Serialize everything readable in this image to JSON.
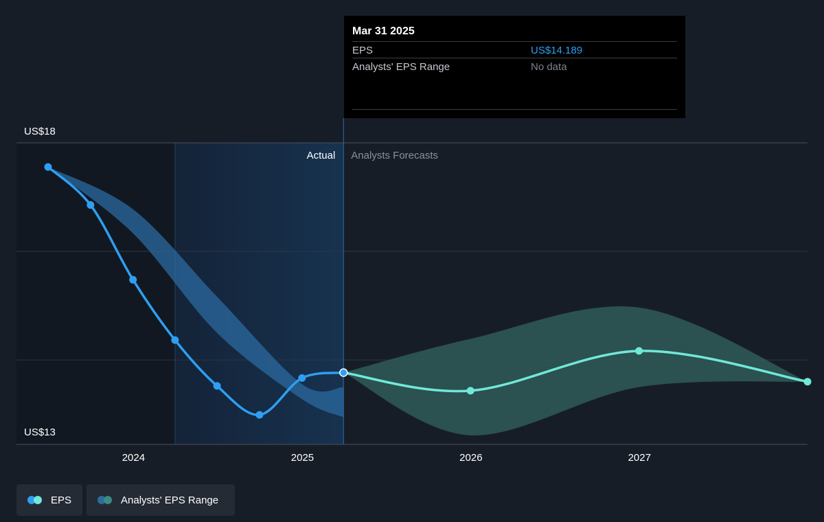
{
  "tooltip": {
    "date": "Mar 31 2025",
    "rows": [
      {
        "label": "EPS",
        "value": "US$14.189",
        "value_color": "#2e9ff2"
      },
      {
        "label": "Analysts' EPS Range",
        "value": "No data",
        "value_color": "#7d838c"
      }
    ]
  },
  "legend": [
    {
      "label": "EPS",
      "colors": [
        "#2e9ff2",
        "#71e8d8"
      ]
    },
    {
      "label": "Analysts' EPS Range",
      "colors": [
        "#2d6d9e",
        "#3d8a84"
      ]
    }
  ],
  "colors": {
    "background": "#171d27",
    "actual_line": "#2e9ff2",
    "forecast_line": "#71e8d8",
    "actual_band": "#2b6aa0",
    "forecast_band": "#2f5b59"
  },
  "chart_data": {
    "type": "line",
    "y_labels": {
      "top": "US$18",
      "bottom": "US$13"
    },
    "ylim": [
      13,
      18
    ],
    "xlim": [
      "2023-06-30",
      "2027-12-31"
    ],
    "x_ticks": [
      {
        "date": "2024-01-01",
        "label": "2024"
      },
      {
        "date": "2025-01-01",
        "label": "2025"
      },
      {
        "date": "2026-01-01",
        "label": "2026"
      },
      {
        "date": "2027-01-01",
        "label": "2027"
      }
    ],
    "gridlines": [
      18,
      16.2,
      14.4
    ],
    "section_labels": {
      "actual": "Actual",
      "forecast": "Analysts Forecasts"
    },
    "past_shade_start": "2024-03-31",
    "divider_date": "2025-03-31",
    "series": [
      {
        "name": "EPS",
        "kind": "actual",
        "points": [
          {
            "x": "2023-06-30",
            "y": 17.6
          },
          {
            "x": "2023-09-30",
            "y": 16.97
          },
          {
            "x": "2023-12-31",
            "y": 15.73
          },
          {
            "x": "2024-03-31",
            "y": 14.73
          },
          {
            "x": "2024-06-30",
            "y": 13.97
          },
          {
            "x": "2024-09-30",
            "y": 13.49
          },
          {
            "x": "2024-12-31",
            "y": 14.1
          },
          {
            "x": "2025-03-31",
            "y": 14.19
          }
        ]
      },
      {
        "name": "EPS",
        "kind": "forecast",
        "points": [
          {
            "x": "2025-03-31",
            "y": 14.19
          },
          {
            "x": "2025-12-31",
            "y": 13.89
          },
          {
            "x": "2026-12-31",
            "y": 14.55
          },
          {
            "x": "2027-12-31",
            "y": 14.04
          }
        ]
      },
      {
        "name": "Analysts' EPS Range",
        "kind": "actual_range",
        "upper": [
          {
            "x": "2023-06-30",
            "y": 17.6
          },
          {
            "x": "2023-12-31",
            "y": 16.9
          },
          {
            "x": "2024-06-30",
            "y": 15.45
          },
          {
            "x": "2024-12-31",
            "y": 14.0
          },
          {
            "x": "2025-03-31",
            "y": 13.95
          }
        ],
        "lower": [
          {
            "x": "2023-06-30",
            "y": 17.6
          },
          {
            "x": "2023-12-31",
            "y": 16.5
          },
          {
            "x": "2024-06-30",
            "y": 14.85
          },
          {
            "x": "2024-12-31",
            "y": 13.75
          },
          {
            "x": "2025-03-31",
            "y": 13.45
          }
        ]
      },
      {
        "name": "Analysts' EPS Range",
        "kind": "forecast_range",
        "upper": [
          {
            "x": "2025-03-31",
            "y": 14.19
          },
          {
            "x": "2025-12-31",
            "y": 14.75
          },
          {
            "x": "2026-12-31",
            "y": 15.27
          },
          {
            "x": "2027-12-31",
            "y": 14.04
          }
        ],
        "lower": [
          {
            "x": "2025-03-31",
            "y": 14.19
          },
          {
            "x": "2025-12-31",
            "y": 13.15
          },
          {
            "x": "2026-12-31",
            "y": 13.95
          },
          {
            "x": "2027-12-31",
            "y": 14.04
          }
        ]
      }
    ]
  }
}
